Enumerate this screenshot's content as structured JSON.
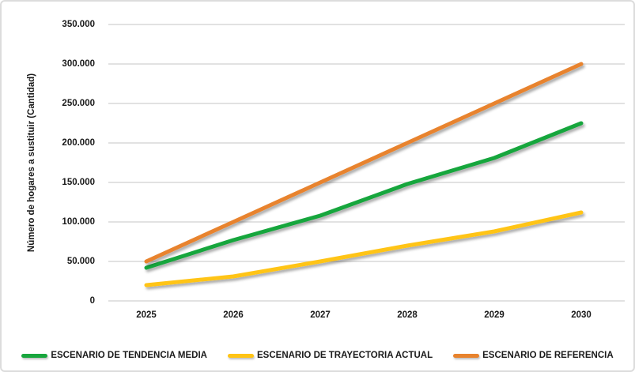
{
  "chart_data": {
    "type": "line",
    "x": [
      "2025",
      "2026",
      "2027",
      "2028",
      "2029",
      "2030"
    ],
    "series": [
      {
        "name": "ESCENARIO DE TENDENCIA MEDIA",
        "color": "#18a63d",
        "values": [
          42000,
          77000,
          108000,
          148000,
          181000,
          225000
        ]
      },
      {
        "name": "ESCENARIO DE TRAYECTORIA ACTUAL",
        "color": "#ffc415",
        "values": [
          20000,
          31000,
          50000,
          70000,
          88000,
          112000
        ]
      },
      {
        "name": "ESCENARIO DE REFERENCIA",
        "color": "#e8832d",
        "values": [
          50000,
          100000,
          150000,
          200000,
          250000,
          300000
        ]
      }
    ],
    "title": "",
    "xlabel": "",
    "ylabel": "Número de hogares a sustituir (Cantidad)",
    "ylim": [
      0,
      350000
    ],
    "ytick_step": 50000,
    "ytick_labels": [
      "0",
      "50.000",
      "100.000",
      "150.000",
      "200.000",
      "250.000",
      "300.000",
      "350.000"
    ],
    "grid": true,
    "legend_position": "bottom"
  },
  "colors": {
    "gridline": "#d9d9d9",
    "border": "#dcdcdc",
    "text": "#1a1a1a",
    "background": "#ffffff"
  }
}
